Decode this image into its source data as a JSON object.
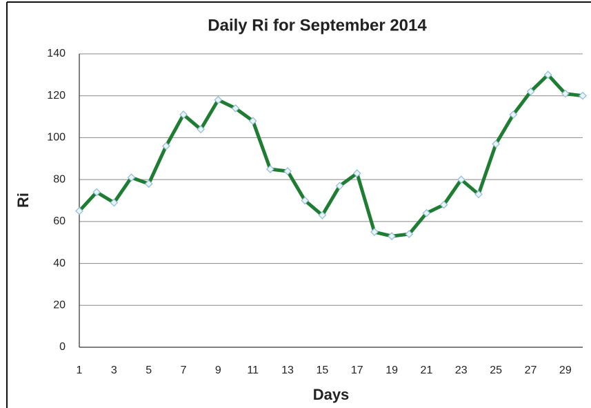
{
  "chart_data": {
    "type": "line",
    "title": "Daily Ri for September 2014",
    "x_label": "Days",
    "y_label": "Ri",
    "x": [
      1,
      2,
      3,
      4,
      5,
      6,
      7,
      8,
      9,
      10,
      11,
      12,
      13,
      14,
      15,
      16,
      17,
      18,
      19,
      20,
      21,
      22,
      23,
      24,
      25,
      26,
      27,
      28,
      29,
      30
    ],
    "series": [
      {
        "name": "Ri",
        "color": "#1e7d32",
        "values": [
          65,
          74,
          69,
          81,
          78,
          96,
          111,
          104,
          118,
          114,
          108,
          85,
          84,
          70,
          63,
          77,
          83,
          55,
          53,
          54,
          64,
          68,
          80,
          73,
          97,
          111,
          122,
          130,
          121,
          120
        ]
      }
    ],
    "xlim": [
      1,
      30
    ],
    "xticks": [
      1,
      3,
      5,
      7,
      9,
      11,
      13,
      15,
      17,
      19,
      21,
      23,
      25,
      27,
      29
    ],
    "ylim": [
      0,
      140
    ],
    "yticks": [
      0,
      20,
      40,
      60,
      80,
      100,
      120,
      140
    ],
    "grid": true
  }
}
